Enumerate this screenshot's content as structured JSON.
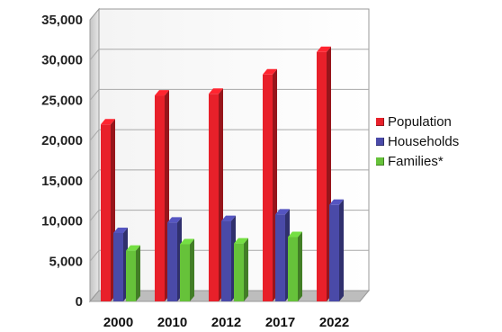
{
  "chart_data": {
    "type": "bar",
    "categories": [
      "2000",
      "2010",
      "2012",
      "2017",
      "2022"
    ],
    "series": [
      {
        "name": "Population",
        "color": "#e8202a",
        "values": [
          22000,
          25600,
          25800,
          28200,
          31000
        ]
      },
      {
        "name": "Households",
        "color": "#4a4aa8",
        "values": [
          8500,
          9800,
          10000,
          10800,
          12000
        ]
      },
      {
        "name": "Families*",
        "color": "#66c23a",
        "values": [
          6300,
          7100,
          7200,
          8000,
          null
        ]
      }
    ],
    "yticks": [
      "0",
      "5,000",
      "10,000",
      "15,000",
      "20,000",
      "25,000",
      "30,000",
      "35,000"
    ],
    "ylim": [
      0,
      35000
    ],
    "grid": true,
    "legend_position": "right",
    "style": "3d"
  }
}
